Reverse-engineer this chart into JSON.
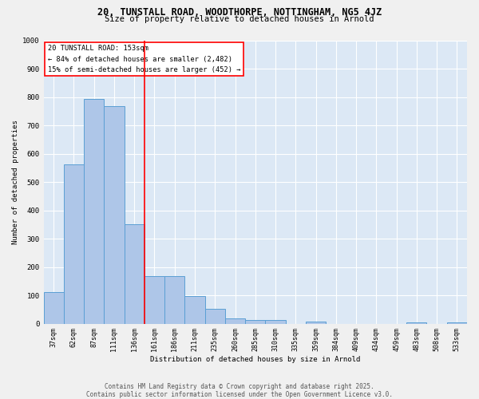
{
  "title_line1": "20, TUNSTALL ROAD, WOODTHORPE, NOTTINGHAM, NG5 4JZ",
  "title_line2": "Size of property relative to detached houses in Arnold",
  "xlabel": "Distribution of detached houses by size in Arnold",
  "ylabel": "Number of detached properties",
  "categories": [
    "37sqm",
    "62sqm",
    "87sqm",
    "111sqm",
    "136sqm",
    "161sqm",
    "186sqm",
    "211sqm",
    "235sqm",
    "260sqm",
    "285sqm",
    "310sqm",
    "335sqm",
    "359sqm",
    "384sqm",
    "409sqm",
    "434sqm",
    "459sqm",
    "483sqm",
    "508sqm",
    "533sqm"
  ],
  "values": [
    113,
    563,
    793,
    770,
    350,
    168,
    168,
    98,
    53,
    18,
    13,
    13,
    0,
    8,
    0,
    0,
    0,
    0,
    5,
    0,
    5
  ],
  "bar_color": "#aec6e8",
  "bar_edge_color": "#5a9fd4",
  "plot_bg_color": "#dce8f5",
  "fig_bg_color": "#f0f0f0",
  "grid_color": "#ffffff",
  "red_line_x": 4.5,
  "marker_label": "20 TUNSTALL ROAD: 153sqm",
  "pct_smaller": "84% of detached houses are smaller (2,482)",
  "pct_larger": "15% of semi-detached houses are larger (452)",
  "ylim_max": 1000,
  "yticks": [
    0,
    100,
    200,
    300,
    400,
    500,
    600,
    700,
    800,
    900,
    1000
  ],
  "footer_line1": "Contains HM Land Registry data © Crown copyright and database right 2025.",
  "footer_line2": "Contains public sector information licensed under the Open Government Licence v3.0."
}
